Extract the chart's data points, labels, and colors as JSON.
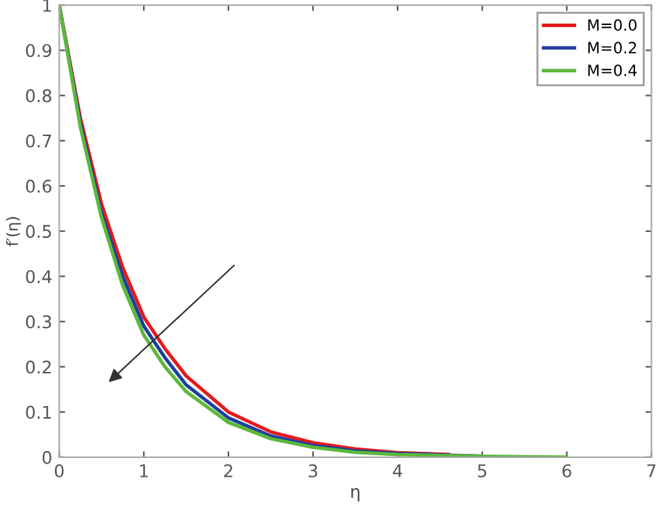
{
  "chart_data": {
    "type": "line",
    "xlabel": "η",
    "ylabel": "f′(η)",
    "xlim": [
      0,
      7
    ],
    "ylim": [
      0,
      1
    ],
    "xticks": [
      0,
      1,
      2,
      3,
      4,
      5,
      6,
      7
    ],
    "yticks": [
      0,
      0.1,
      0.2,
      0.3,
      0.4,
      0.5,
      0.6,
      0.7,
      0.8,
      0.9,
      1
    ],
    "grid": false,
    "legend": "top right",
    "line_style": "solid",
    "marker": "none",
    "series": [
      {
        "name": "M=0.0",
        "color": "#e41a1c",
        "x": [
          0,
          0.25,
          0.5,
          0.75,
          1,
          1.25,
          1.5,
          2,
          2.5,
          3,
          3.5,
          4,
          4.6
        ],
        "values": [
          1,
          0.75,
          0.56,
          0.42,
          0.31,
          0.24,
          0.18,
          0.1,
          0.056,
          0.032,
          0.018,
          0.01,
          0.006
        ]
      },
      {
        "name": "M=0.2",
        "color": "#1f3f9f",
        "x": [
          0,
          0.25,
          0.5,
          0.75,
          1,
          1.25,
          1.5,
          2,
          2.5,
          3,
          3.5,
          4,
          5
        ],
        "values": [
          1,
          0.74,
          0.54,
          0.4,
          0.29,
          0.22,
          0.16,
          0.087,
          0.047,
          0.026,
          0.014,
          0.008,
          0.002
        ]
      },
      {
        "name": "M=0.4",
        "color": "#5cb83a",
        "x": [
          0,
          0.25,
          0.5,
          0.75,
          1,
          1.25,
          1.5,
          2,
          2.5,
          3,
          3.5,
          4,
          5,
          6
        ],
        "values": [
          1,
          0.73,
          0.53,
          0.38,
          0.27,
          0.2,
          0.145,
          0.077,
          0.041,
          0.022,
          0.011,
          0.006,
          0.002,
          0
        ]
      }
    ]
  }
}
